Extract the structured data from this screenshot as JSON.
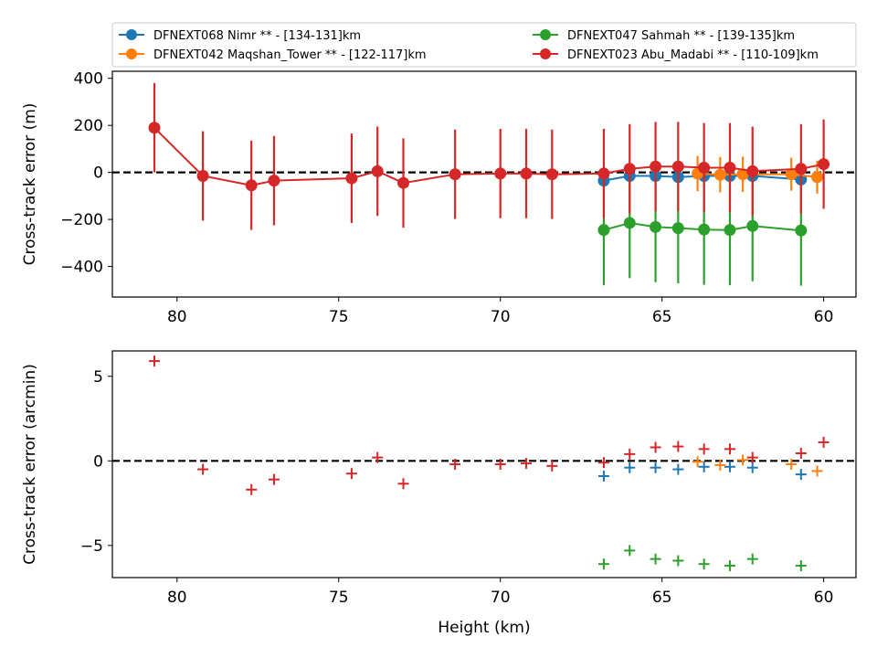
{
  "chart_data": [
    {
      "type": "line",
      "ylabel": "Cross-track error (m)",
      "xlabel": "",
      "xlim": [
        82,
        59
      ],
      "ylim": [
        -530,
        430
      ],
      "xticks": [
        80,
        75,
        70,
        65,
        60
      ],
      "yticks": [
        400,
        200,
        0,
        -200,
        -400
      ],
      "ytick_labels": [
        "400",
        "200",
        "0",
        "−200",
        "−400"
      ],
      "zero_line": true,
      "legend_position": "top (above plot), 2 columns",
      "series": [
        {
          "name": "DFNEXT068 Nimr **  - [134-131]km",
          "color": "#1f77b4",
          "x": [
            66.8,
            66.0,
            65.2,
            64.5,
            63.7,
            62.9,
            62.2,
            60.7
          ],
          "y": [
            -35,
            -15,
            -15,
            -20,
            -15,
            -15,
            -15,
            -30
          ],
          "err": [
            0,
            0,
            0,
            0,
            0,
            0,
            0,
            0
          ]
        },
        {
          "name": "DFNEXT047 Sahmah **  - [139-135]km",
          "color": "#2ca02c",
          "x": [
            66.8,
            66.0,
            65.2,
            64.5,
            63.7,
            62.9,
            62.2,
            60.7
          ],
          "y": [
            -245,
            -215,
            -232,
            -237,
            -243,
            -245,
            -228,
            -247
          ],
          "err": [
            235,
            235,
            235,
            235,
            235,
            235,
            235,
            235
          ]
        },
        {
          "name": "DFNEXT042 Maqshan_Tower **  - [122-117]km",
          "color": "#ff7f0e",
          "x": [
            63.9,
            63.2,
            62.5,
            61.0,
            60.2
          ],
          "y": [
            -5,
            -10,
            -8,
            -8,
            -20
          ],
          "err": [
            75,
            75,
            75,
            70,
            70
          ]
        },
        {
          "name": "DFNEXT023 Abu_Madabi **  - [110-109]km",
          "color": "#d62728",
          "x": [
            80.7,
            79.2,
            77.7,
            77.0,
            74.6,
            73.8,
            73.0,
            71.4,
            70.0,
            69.2,
            68.4,
            66.8,
            66.0,
            65.2,
            64.5,
            63.7,
            62.9,
            62.2,
            60.7,
            60.0
          ],
          "y": [
            190,
            -15,
            -55,
            -35,
            -25,
            5,
            -45,
            -8,
            -5,
            -5,
            -8,
            -5,
            15,
            25,
            25,
            20,
            20,
            5,
            15,
            35
          ],
          "err": [
            190,
            190,
            190,
            190,
            190,
            190,
            190,
            190,
            190,
            190,
            190,
            190,
            190,
            190,
            190,
            190,
            190,
            190,
            190,
            190
          ]
        }
      ]
    },
    {
      "type": "scatter",
      "ylabel": "Cross-track error (arcmin)",
      "xlabel": "Height (km)",
      "xlim": [
        82,
        59
      ],
      "ylim": [
        -6.9,
        6.5
      ],
      "xticks": [
        80,
        75,
        70,
        65,
        60
      ],
      "yticks": [
        5,
        0,
        -5
      ],
      "ytick_labels": [
        "5",
        "0",
        "−5"
      ],
      "zero_line": true,
      "marker": "plus",
      "series": [
        {
          "color": "#1f77b4",
          "x": [
            66.8,
            66.0,
            65.2,
            64.5,
            63.7,
            62.9,
            62.2,
            60.7
          ],
          "y": [
            -0.9,
            -0.4,
            -0.4,
            -0.5,
            -0.35,
            -0.35,
            -0.4,
            -0.8
          ]
        },
        {
          "color": "#2ca02c",
          "x": [
            66.8,
            66.0,
            65.2,
            64.5,
            63.7,
            62.9,
            62.2,
            60.7
          ],
          "y": [
            -6.1,
            -5.3,
            -5.8,
            -5.9,
            -6.1,
            -6.2,
            -5.8,
            -6.2
          ]
        },
        {
          "color": "#ff7f0e",
          "x": [
            63.9,
            63.2,
            62.5,
            61.0,
            60.2
          ],
          "y": [
            -0.05,
            -0.25,
            0.05,
            -0.2,
            -0.6
          ]
        },
        {
          "color": "#d62728",
          "x": [
            80.7,
            79.2,
            77.7,
            77.0,
            74.6,
            73.8,
            73.0,
            71.4,
            70.0,
            69.2,
            68.4,
            66.8,
            66.0,
            65.2,
            64.5,
            63.7,
            62.9,
            62.2,
            60.7,
            60.0
          ],
          "y": [
            5.9,
            -0.5,
            -1.7,
            -1.1,
            -0.75,
            0.2,
            -1.35,
            -0.2,
            -0.2,
            -0.15,
            -0.3,
            -0.1,
            0.4,
            0.8,
            0.85,
            0.7,
            0.7,
            0.2,
            0.45,
            1.1
          ]
        }
      ]
    }
  ]
}
